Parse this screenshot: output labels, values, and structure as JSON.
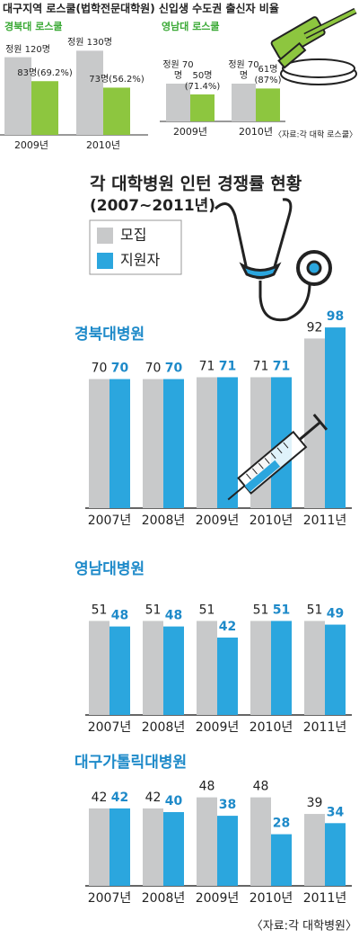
{
  "title": "대구지역 로스쿨(법학전문대학원) 신입생 수도권 출신자 비율",
  "main_title": "각 대학병원 인턴 경쟁률 현황",
  "main_subtitle": "(2007~2011년)",
  "chart_data": [
    {
      "type": "bar",
      "title": "경북대 로스쿨",
      "categories": [
        "2009년",
        "2010년"
      ],
      "series": [
        {
          "color": "#c8c9ca",
          "values": [
            120,
            130
          ],
          "value_labels": [
            "정원 120명",
            "정원 130명"
          ]
        },
        {
          "color": "#8dc63f",
          "values": [
            83,
            73
          ],
          "value_labels": [
            "83명(69.2%)",
            "73명(56.2%)"
          ]
        }
      ]
    },
    {
      "type": "bar",
      "title": "영남대 로스쿨",
      "categories": [
        "2009년",
        "2010년"
      ],
      "series": [
        {
          "color": "#c8c9ca",
          "values": [
            70,
            70
          ],
          "value_labels": [
            "정원 70명",
            "정원 70명"
          ]
        },
        {
          "color": "#8dc63f",
          "values": [
            50,
            61
          ],
          "value_labels": [
            "50명 (71.4%)",
            "61명 (87%)"
          ]
        }
      ],
      "source": "〈자료:각 대학 로스쿨〉"
    },
    {
      "type": "bar",
      "title": "경북대병원",
      "categories": [
        "2007년",
        "2008년",
        "2009년",
        "2010년",
        "2011년"
      ],
      "series": [
        {
          "name": "모집",
          "color": "#c8c9ca",
          "values": [
            70,
            70,
            71,
            71,
            92
          ]
        },
        {
          "name": "지원자",
          "color": "#2ba6de",
          "values": [
            70,
            70,
            71,
            71,
            98
          ]
        }
      ]
    },
    {
      "type": "bar",
      "title": "영남대병원",
      "categories": [
        "2007년",
        "2008년",
        "2009년",
        "2010년",
        "2011년"
      ],
      "series": [
        {
          "color": "#c8c9ca",
          "values": [
            51,
            51,
            51,
            51,
            51
          ]
        },
        {
          "color": "#2ba6de",
          "values": [
            48,
            48,
            42,
            51,
            49
          ]
        }
      ]
    },
    {
      "type": "bar",
      "title": "대구가톨릭대병원",
      "categories": [
        "2007년",
        "2008년",
        "2009년",
        "2010년",
        "2011년"
      ],
      "series": [
        {
          "color": "#c8c9ca",
          "values": [
            42,
            42,
            48,
            48,
            39
          ]
        },
        {
          "color": "#2ba6de",
          "values": [
            42,
            40,
            38,
            28,
            34
          ]
        }
      ],
      "source": "〈자료:각 대학병원〉"
    }
  ]
}
